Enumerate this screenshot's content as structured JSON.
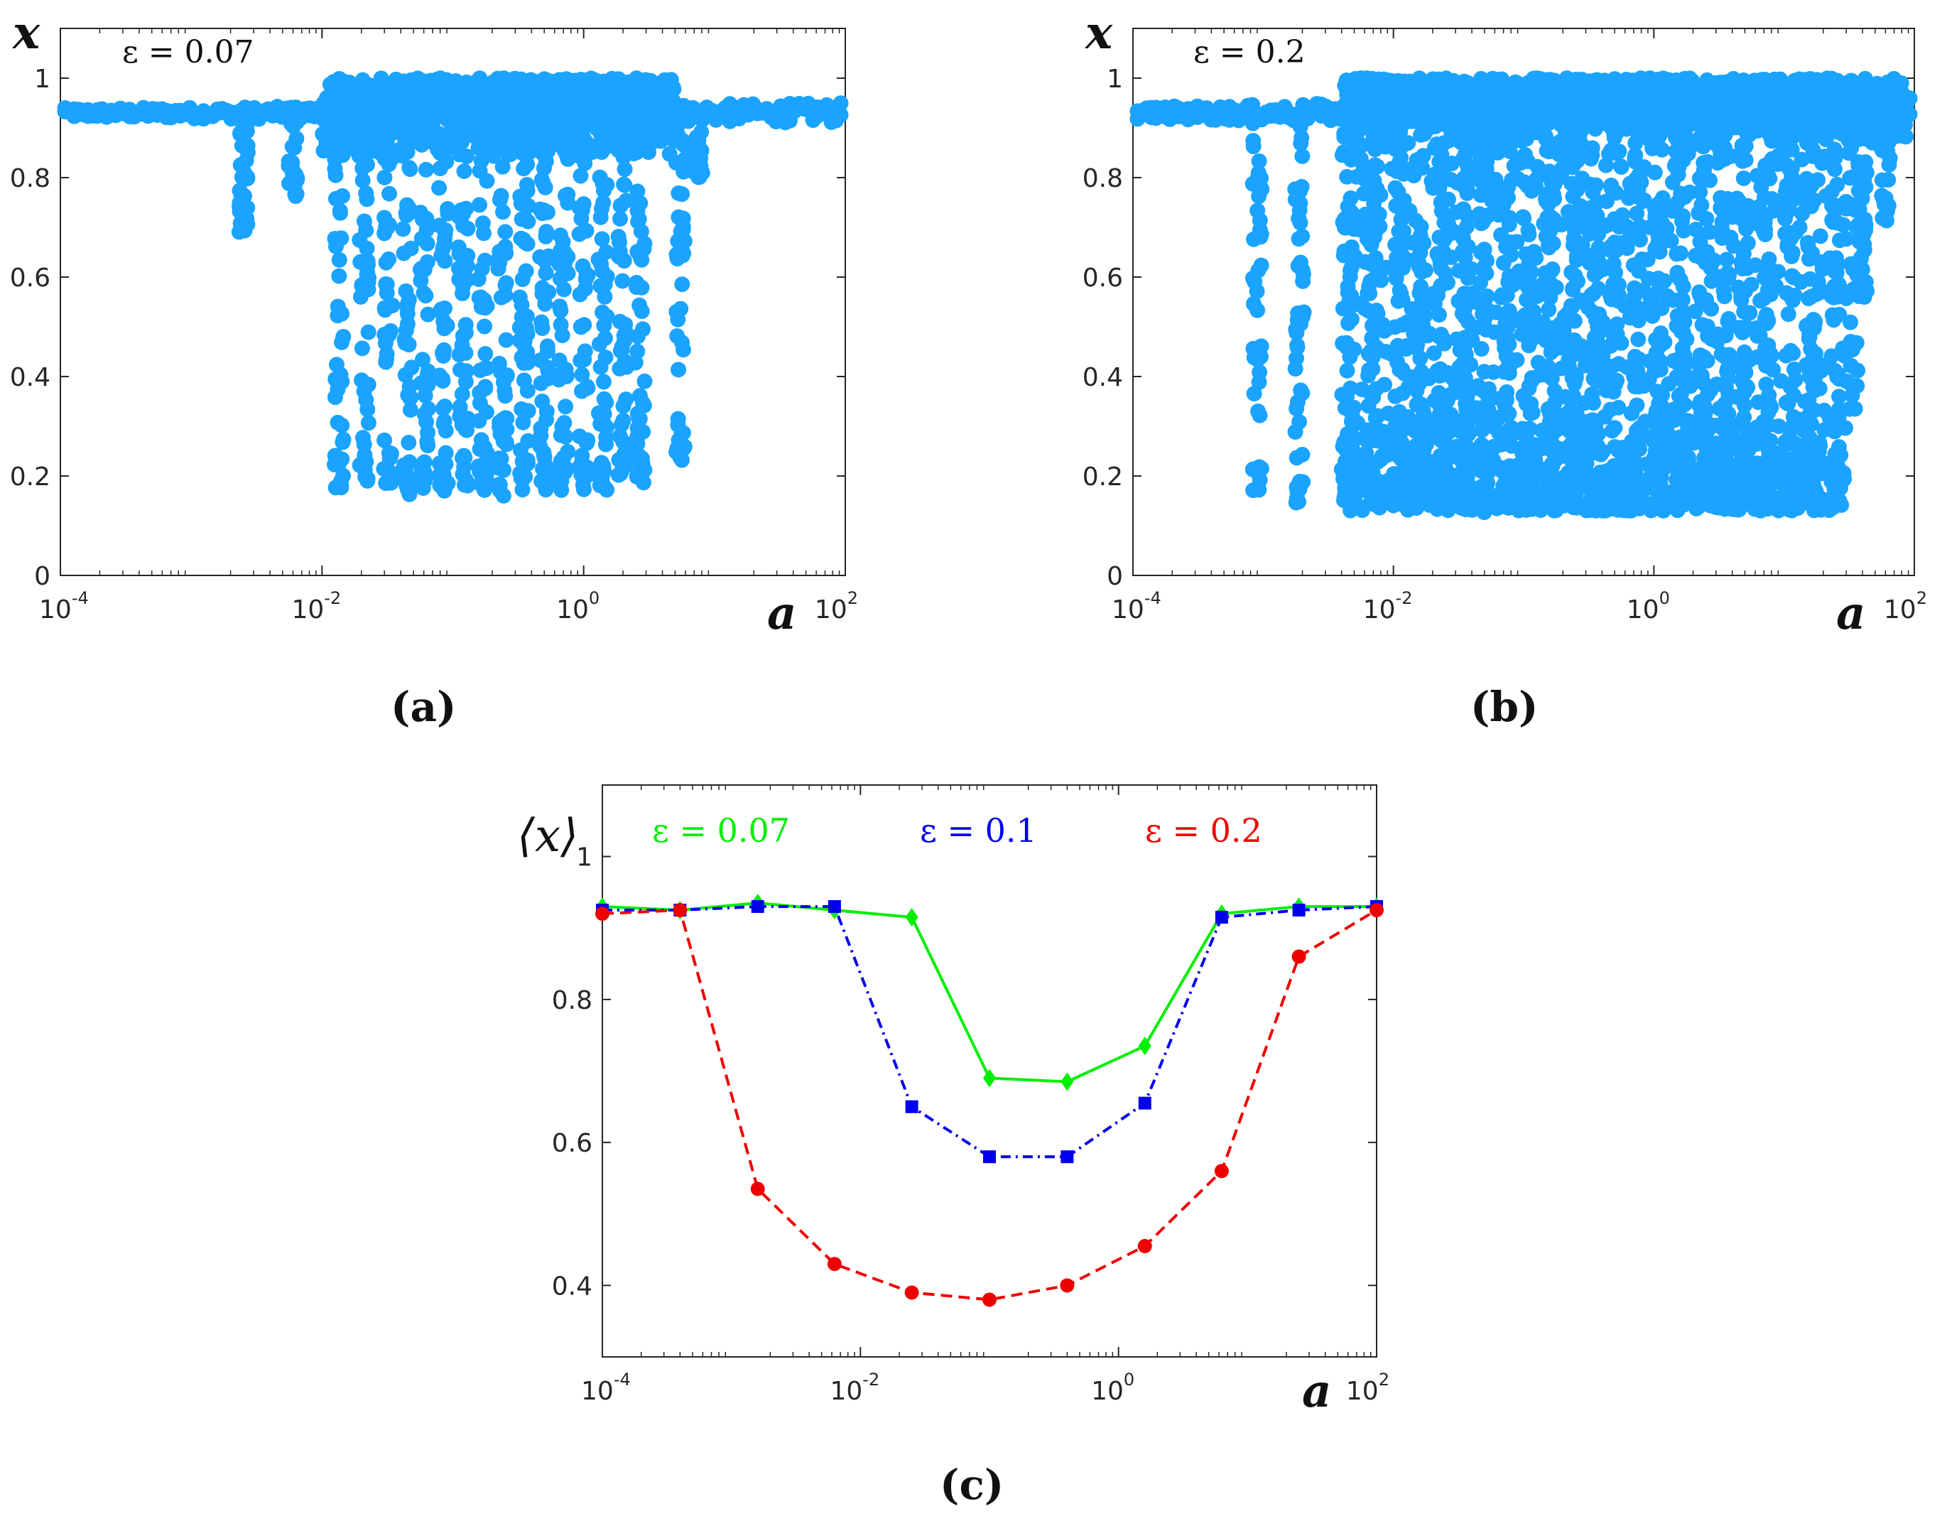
{
  "colors": {
    "scatter": "#1aa3ff",
    "green": "#00ee00",
    "blue": "#0000ee",
    "red": "#ee0000",
    "axis": "#262626"
  },
  "chart_data": [
    {
      "type": "scatter",
      "panel_label": "(a)",
      "annotation": "ε = 0.07",
      "xlabel": "a",
      "ylabel": "x",
      "xscale": "log",
      "xlim": [
        0.0001,
        100
      ],
      "ylim": [
        0,
        1.1
      ],
      "xticks": [
        0.0001,
        0.01,
        1,
        100
      ],
      "xtick_bases": [
        "10",
        "10",
        "10",
        "10"
      ],
      "xtick_exps": [
        "-4",
        "-2",
        "0",
        "2"
      ],
      "yticks": [
        0,
        0.2,
        0.4,
        0.6,
        0.8,
        1
      ],
      "ytick_labels": [
        "0",
        "0.2",
        "0.4",
        "0.6",
        "0.8",
        "1"
      ],
      "grid": false,
      "band": {
        "y_center": 0.93,
        "spread_left": 0.01,
        "spread_right": 0.02
      },
      "dense_band": {
        "x_from": 0.01,
        "x_to": 5,
        "y_from": 0.84,
        "y_to": 1.0
      },
      "columns": [
        {
          "x": 0.0025,
          "y_min": 0.69,
          "y_max": 0.93
        },
        {
          "x": 0.006,
          "y_min": 0.76,
          "y_max": 0.95
        },
        {
          "x": 0.0135,
          "y_min": 0.17,
          "y_max": 1.0
        },
        {
          "x": 0.021,
          "y_min": 0.17,
          "y_max": 1.0
        },
        {
          "x": 0.032,
          "y_min": 0.16,
          "y_max": 1.0
        },
        {
          "x": 0.045,
          "y_min": 0.16,
          "y_max": 1.0
        },
        {
          "x": 0.06,
          "y_min": 0.17,
          "y_max": 1.0
        },
        {
          "x": 0.085,
          "y_min": 0.17,
          "y_max": 1.0
        },
        {
          "x": 0.12,
          "y_min": 0.16,
          "y_max": 1.0
        },
        {
          "x": 0.17,
          "y_min": 0.17,
          "y_max": 1.0
        },
        {
          "x": 0.24,
          "y_min": 0.16,
          "y_max": 1.0
        },
        {
          "x": 0.35,
          "y_min": 0.17,
          "y_max": 1.0
        },
        {
          "x": 0.5,
          "y_min": 0.17,
          "y_max": 1.0
        },
        {
          "x": 0.7,
          "y_min": 0.17,
          "y_max": 1.0
        },
        {
          "x": 1.0,
          "y_min": 0.17,
          "y_max": 1.0
        },
        {
          "x": 1.4,
          "y_min": 0.17,
          "y_max": 1.0
        },
        {
          "x": 2.0,
          "y_min": 0.18,
          "y_max": 1.0
        },
        {
          "x": 2.7,
          "y_min": 0.18,
          "y_max": 0.98
        },
        {
          "x": 5.5,
          "y_min": 0.23,
          "y_max": 0.93
        },
        {
          "x": 7.5,
          "y_min": 0.8,
          "y_max": 0.93
        }
      ]
    },
    {
      "type": "scatter",
      "panel_label": "(b)",
      "annotation": "ε = 0.2",
      "xlabel": "a",
      "ylabel": "x",
      "xscale": "log",
      "xlim": [
        0.0001,
        100
      ],
      "ylim": [
        0,
        1.1
      ],
      "xticks": [
        0.0001,
        0.01,
        1,
        100
      ],
      "xtick_bases": [
        "10",
        "10",
        "10",
        "10"
      ],
      "xtick_exps": [
        "-4",
        "-2",
        "0",
        "2"
      ],
      "yticks": [
        0,
        0.2,
        0.4,
        0.6,
        0.8,
        1
      ],
      "ytick_labels": [
        "0",
        "0.2",
        "0.4",
        "0.6",
        "0.8",
        "1"
      ],
      "grid": false,
      "band": {
        "y_center": 0.93,
        "spread_left": 0.012,
        "spread_right": 0.04
      },
      "dense_band": {
        "x_from": 0.004,
        "x_to": 90,
        "y_from": 0.86,
        "y_to": 1.0
      },
      "dense_floor": {
        "x_from": 0.004,
        "x_to": 30,
        "y_from": 0.13,
        "y_to": 0.3
      },
      "columns": [
        {
          "x": 0.0009,
          "y_min": 0.16,
          "y_max": 0.93
        },
        {
          "x": 0.0019,
          "y_min": 0.13,
          "y_max": 0.95
        },
        {
          "x": 0.0045,
          "y_min": 0.15,
          "y_max": 0.98
        },
        {
          "x": 0.007,
          "y_min": 0.14,
          "y_max": 1.0
        },
        {
          "x": 0.011,
          "y_min": 0.14,
          "y_max": 1.0
        },
        {
          "x": 0.016,
          "y_min": 0.14,
          "y_max": 1.0
        },
        {
          "x": 0.024,
          "y_min": 0.13,
          "y_max": 1.0
        },
        {
          "x": 0.035,
          "y_min": 0.13,
          "y_max": 1.0
        },
        {
          "x": 0.05,
          "y_min": 0.12,
          "y_max": 1.0
        },
        {
          "x": 0.075,
          "y_min": 0.13,
          "y_max": 1.0
        },
        {
          "x": 0.11,
          "y_min": 0.13,
          "y_max": 1.0
        },
        {
          "x": 0.16,
          "y_min": 0.13,
          "y_max": 1.0
        },
        {
          "x": 0.24,
          "y_min": 0.13,
          "y_max": 1.0
        },
        {
          "x": 0.35,
          "y_min": 0.13,
          "y_max": 1.0
        },
        {
          "x": 0.5,
          "y_min": 0.13,
          "y_max": 1.0
        },
        {
          "x": 0.75,
          "y_min": 0.13,
          "y_max": 1.0
        },
        {
          "x": 1.1,
          "y_min": 0.13,
          "y_max": 1.0
        },
        {
          "x": 1.6,
          "y_min": 0.14,
          "y_max": 1.0
        },
        {
          "x": 2.4,
          "y_min": 0.14,
          "y_max": 1.0
        },
        {
          "x": 3.5,
          "y_min": 0.15,
          "y_max": 1.0
        },
        {
          "x": 5.0,
          "y_min": 0.15,
          "y_max": 1.0
        },
        {
          "x": 7.5,
          "y_min": 0.16,
          "y_max": 1.0
        },
        {
          "x": 11,
          "y_min": 0.18,
          "y_max": 0.98
        },
        {
          "x": 16,
          "y_min": 0.2,
          "y_max": 0.97
        },
        {
          "x": 25,
          "y_min": 0.2,
          "y_max": 0.95
        },
        {
          "x": 40,
          "y_min": 0.56,
          "y_max": 0.95
        },
        {
          "x": 60,
          "y_min": 0.71,
          "y_max": 0.95
        }
      ]
    },
    {
      "type": "line",
      "panel_label": "(c)",
      "xlabel": "a",
      "ylabel": "⟨x⟩",
      "xscale": "log",
      "xlim": [
        0.0001,
        100
      ],
      "ylim": [
        0.3,
        1.1
      ],
      "xticks": [
        0.0001,
        0.01,
        1,
        100
      ],
      "xtick_bases": [
        "10",
        "10",
        "10",
        "10"
      ],
      "xtick_exps": [
        "-4",
        "-2",
        "0",
        "2"
      ],
      "yticks": [
        0.4,
        0.6,
        0.8,
        1
      ],
      "ytick_labels": [
        "0.4",
        "0.6",
        "0.8",
        "1"
      ],
      "grid": false,
      "x": [
        0.0001,
        0.0004,
        0.0016,
        0.0063,
        0.025,
        0.1,
        0.4,
        1.6,
        6.3,
        25,
        100
      ],
      "series": [
        {
          "name": "ε = 0.07",
          "color": "#00ee00",
          "dash": "solid",
          "marker": "diamond",
          "values": [
            0.93,
            0.925,
            0.935,
            0.925,
            0.915,
            0.69,
            0.685,
            0.735,
            0.92,
            0.93,
            0.93
          ]
        },
        {
          "name": "ε = 0.1",
          "color": "#0000ee",
          "dash": "dashdot",
          "marker": "square",
          "values": [
            0.925,
            0.925,
            0.93,
            0.93,
            0.65,
            0.58,
            0.58,
            0.655,
            0.915,
            0.925,
            0.93
          ]
        },
        {
          "name": "ε = 0.2",
          "color": "#ee0000",
          "dash": "dashed",
          "marker": "circle",
          "values": [
            0.92,
            0.925,
            0.535,
            0.43,
            0.39,
            0.38,
            0.4,
            0.455,
            0.56,
            0.86,
            0.925
          ]
        }
      ]
    }
  ]
}
